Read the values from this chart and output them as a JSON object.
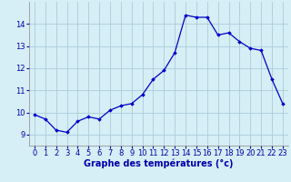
{
  "hours": [
    0,
    1,
    2,
    3,
    4,
    5,
    6,
    7,
    8,
    9,
    10,
    11,
    12,
    13,
    14,
    15,
    16,
    17,
    18,
    19,
    20,
    21,
    22,
    23
  ],
  "temperatures": [
    9.9,
    9.7,
    9.2,
    9.1,
    9.6,
    9.8,
    9.7,
    10.1,
    10.3,
    10.4,
    10.8,
    11.5,
    11.9,
    12.7,
    14.4,
    14.3,
    14.3,
    13.5,
    13.6,
    13.2,
    12.9,
    12.8,
    11.5,
    10.4
  ],
  "line_color": "#0000cc",
  "marker": "D",
  "marker_size": 1.8,
  "bg_color": "#d6eef5",
  "grid_color": "#aaccdd",
  "axis_label_color": "#0000aa",
  "tick_label_color": "#0000aa",
  "xlabel": "Graphe des températures (°c)",
  "xlabel_fontsize": 7,
  "tick_fontsize": 6,
  "ylim": [
    8.5,
    15.0
  ],
  "yticks": [
    9,
    10,
    11,
    12,
    13,
    14
  ],
  "xlim": [
    -0.5,
    23.5
  ],
  "line_width": 0.9
}
